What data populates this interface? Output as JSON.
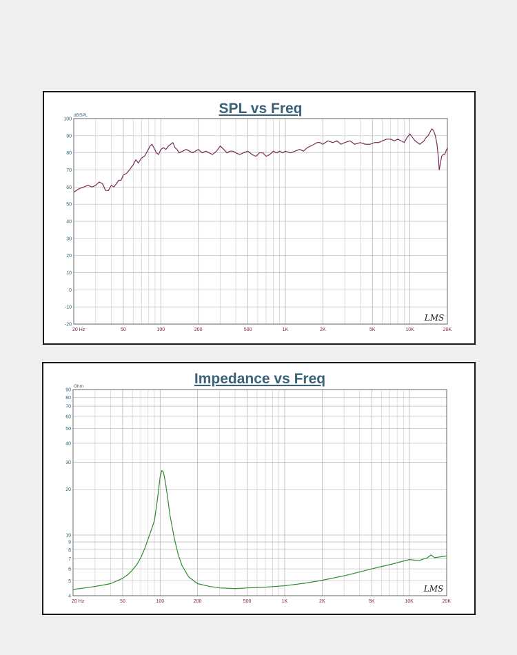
{
  "chart_data": [
    {
      "type": "line",
      "title": "SPL vs Freq",
      "ylabel": "dBSPL",
      "xscale": "log",
      "xlim": [
        20,
        20000
      ],
      "ylim": [
        -20,
        100
      ],
      "grid": true,
      "x_tick_labels": [
        "20 Hz",
        "50",
        "100",
        "200",
        "500",
        "1K",
        "2K",
        "5K",
        "10K",
        "20K"
      ],
      "y_tick_labels": [
        "-20",
        "-10",
        "0",
        "10",
        "20",
        "30",
        "40",
        "50",
        "60",
        "70",
        "80",
        "90",
        "100"
      ],
      "watermark": "LMS",
      "series": [
        {
          "color": "#7a2a5a",
          "x": [
            20,
            22,
            24,
            26,
            28,
            30,
            32,
            34,
            36,
            38,
            40,
            42,
            44,
            46,
            48,
            50,
            53,
            56,
            60,
            63,
            66,
            70,
            74,
            78,
            82,
            85,
            88,
            92,
            96,
            100,
            105,
            110,
            115,
            120,
            125,
            130,
            135,
            140,
            150,
            160,
            170,
            180,
            190,
            200,
            215,
            230,
            245,
            260,
            280,
            300,
            320,
            340,
            360,
            380,
            400,
            430,
            460,
            500,
            540,
            580,
            620,
            660,
            700,
            750,
            800,
            850,
            900,
            950,
            1000,
            1100,
            1200,
            1300,
            1400,
            1500,
            1600,
            1700,
            1800,
            1900,
            2000,
            2200,
            2400,
            2600,
            2800,
            3000,
            3300,
            3600,
            4000,
            4400,
            4800,
            5200,
            5600,
            6000,
            6500,
            7000,
            7500,
            8000,
            8500,
            9000,
            9500,
            10000,
            10500,
            11000,
            11500,
            12000,
            12500,
            13000,
            13500,
            14000,
            14500,
            15000,
            15500,
            16000,
            16500,
            17000,
            17200,
            17500,
            18000,
            18500,
            19000,
            19500,
            20000
          ],
          "y": [
            57,
            59,
            60,
            61,
            60,
            61,
            63,
            62,
            58,
            58,
            61,
            60,
            62,
            64,
            64,
            67,
            68,
            70,
            73,
            76,
            74,
            77,
            78,
            81,
            84,
            85,
            83,
            80,
            79,
            82,
            83,
            82,
            84,
            85,
            86,
            83,
            82,
            80,
            81,
            82,
            81,
            80,
            81,
            82,
            80,
            81,
            80,
            79,
            81,
            84,
            82,
            80,
            81,
            81,
            80,
            79,
            80,
            81,
            79,
            78,
            80,
            80,
            78,
            79,
            81,
            80,
            81,
            80,
            81,
            80,
            81,
            82,
            81,
            83,
            84,
            85,
            86,
            86,
            85,
            87,
            86,
            87,
            85,
            86,
            87,
            85,
            86,
            85,
            85,
            86,
            86,
            87,
            88,
            88,
            87,
            88,
            87,
            86,
            89,
            91,
            89,
            87,
            86,
            85,
            86,
            87,
            89,
            90,
            92,
            94,
            93,
            90,
            85,
            76,
            70,
            73,
            78,
            79,
            79,
            81,
            83
          ]
        }
      ]
    },
    {
      "type": "line",
      "title": "Impedance vs Freq",
      "ylabel": "Ohm",
      "xscale": "log",
      "yscale": "log",
      "xlim": [
        20,
        20000
      ],
      "ylim": [
        4,
        90
      ],
      "grid": true,
      "x_tick_labels": [
        "20 Hz",
        "50",
        "100",
        "200",
        "500",
        "1K",
        "2K",
        "5K",
        "10K",
        "20K"
      ],
      "y_tick_labels": [
        "4",
        "5",
        "6",
        "7",
        "8",
        "9",
        "10",
        "20",
        "30",
        "40",
        "50",
        "60",
        "70",
        "80",
        "90"
      ],
      "watermark": "LMS",
      "series": [
        {
          "color": "#2e8b2e",
          "x": [
            20,
            25,
            30,
            35,
            40,
            45,
            50,
            55,
            60,
            65,
            70,
            75,
            80,
            85,
            90,
            95,
            100,
            103,
            106,
            110,
            115,
            120,
            130,
            140,
            150,
            170,
            200,
            250,
            300,
            400,
            500,
            700,
            1000,
            1500,
            2000,
            3000,
            5000,
            7000,
            10000,
            12000,
            14000,
            15000,
            16000,
            20000
          ],
          "y": [
            4.4,
            4.5,
            4.6,
            4.7,
            4.8,
            5.0,
            5.2,
            5.5,
            5.9,
            6.4,
            7.1,
            8.1,
            9.4,
            10.8,
            12.4,
            17.0,
            24.0,
            26.5,
            26.0,
            22.5,
            17.5,
            13.5,
            9.5,
            7.4,
            6.3,
            5.3,
            4.8,
            4.6,
            4.5,
            4.45,
            4.5,
            4.55,
            4.65,
            4.85,
            5.05,
            5.4,
            6.0,
            6.4,
            6.9,
            6.8,
            7.1,
            7.4,
            7.1,
            7.3
          ]
        }
      ]
    }
  ]
}
